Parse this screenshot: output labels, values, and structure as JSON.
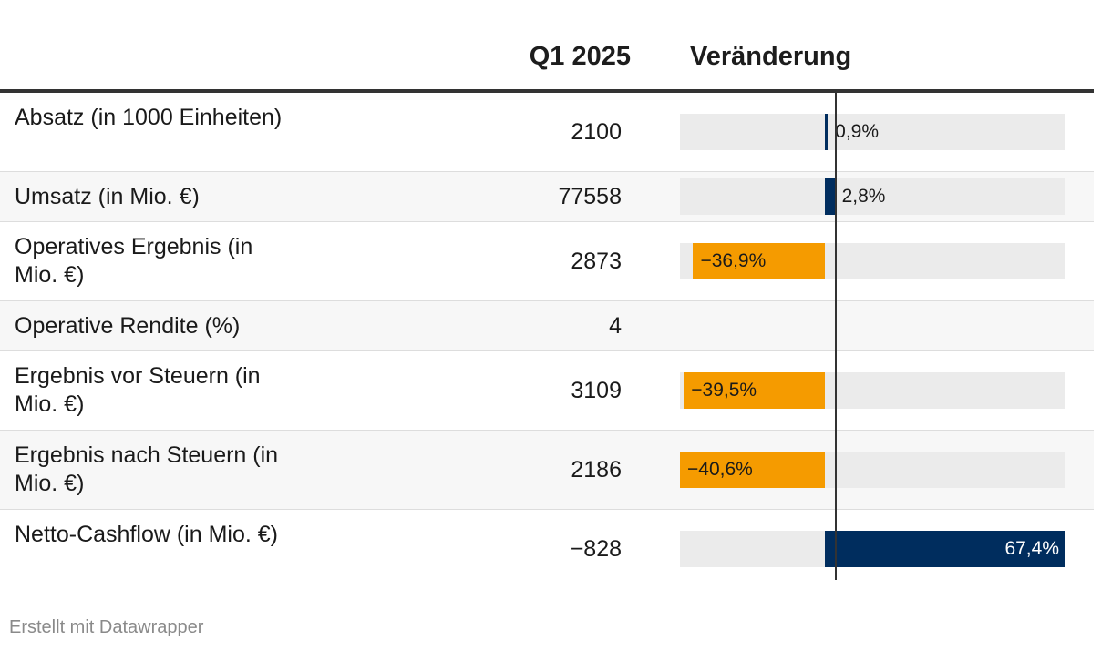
{
  "header": {
    "col_value": "Q1 2025",
    "col_change": "Veränderung"
  },
  "rows": [
    {
      "label": "Absatz (in 1000 Einheiten)",
      "value": "2100",
      "change_label": "0,9%"
    },
    {
      "label": "Umsatz (in Mio. €)",
      "value": "77558",
      "change_label": "2,8%"
    },
    {
      "label": "Operatives Ergebnis (in Mio. €)",
      "value": "2873",
      "change_label": "−36,9%"
    },
    {
      "label": "Operative Rendite (%)",
      "value": "4",
      "change_label": ""
    },
    {
      "label": "Ergebnis vor Steuern (in Mio. €)",
      "value": "3109",
      "change_label": "−39,5%"
    },
    {
      "label": "Ergebnis nach Steuern (in Mio. €)",
      "value": "2186",
      "change_label": "−40,6%"
    },
    {
      "label": "Netto-Cashflow (in Mio. €)",
      "value": "−828",
      "change_label": "67,4%"
    }
  ],
  "chart_data": {
    "type": "bar",
    "title": "Veränderung",
    "categories": [
      "Absatz (in 1000 Einheiten)",
      "Umsatz (in Mio. €)",
      "Operatives Ergebnis (in Mio. €)",
      "Operative Rendite (%)",
      "Ergebnis vor Steuern (in Mio. €)",
      "Ergebnis nach Steuern (in Mio. €)",
      "Netto-Cashflow (in Mio. €)"
    ],
    "values": [
      0.9,
      2.8,
      -36.9,
      null,
      -39.5,
      -40.6,
      67.4
    ],
    "unit": "%",
    "xlim": [
      -40.6,
      67.4
    ],
    "colors": {
      "positive": "#002d5e",
      "negative": "#f59b00",
      "track": "#ebebeb"
    }
  },
  "footer": {
    "credit": "Erstellt mit Datawrapper"
  }
}
